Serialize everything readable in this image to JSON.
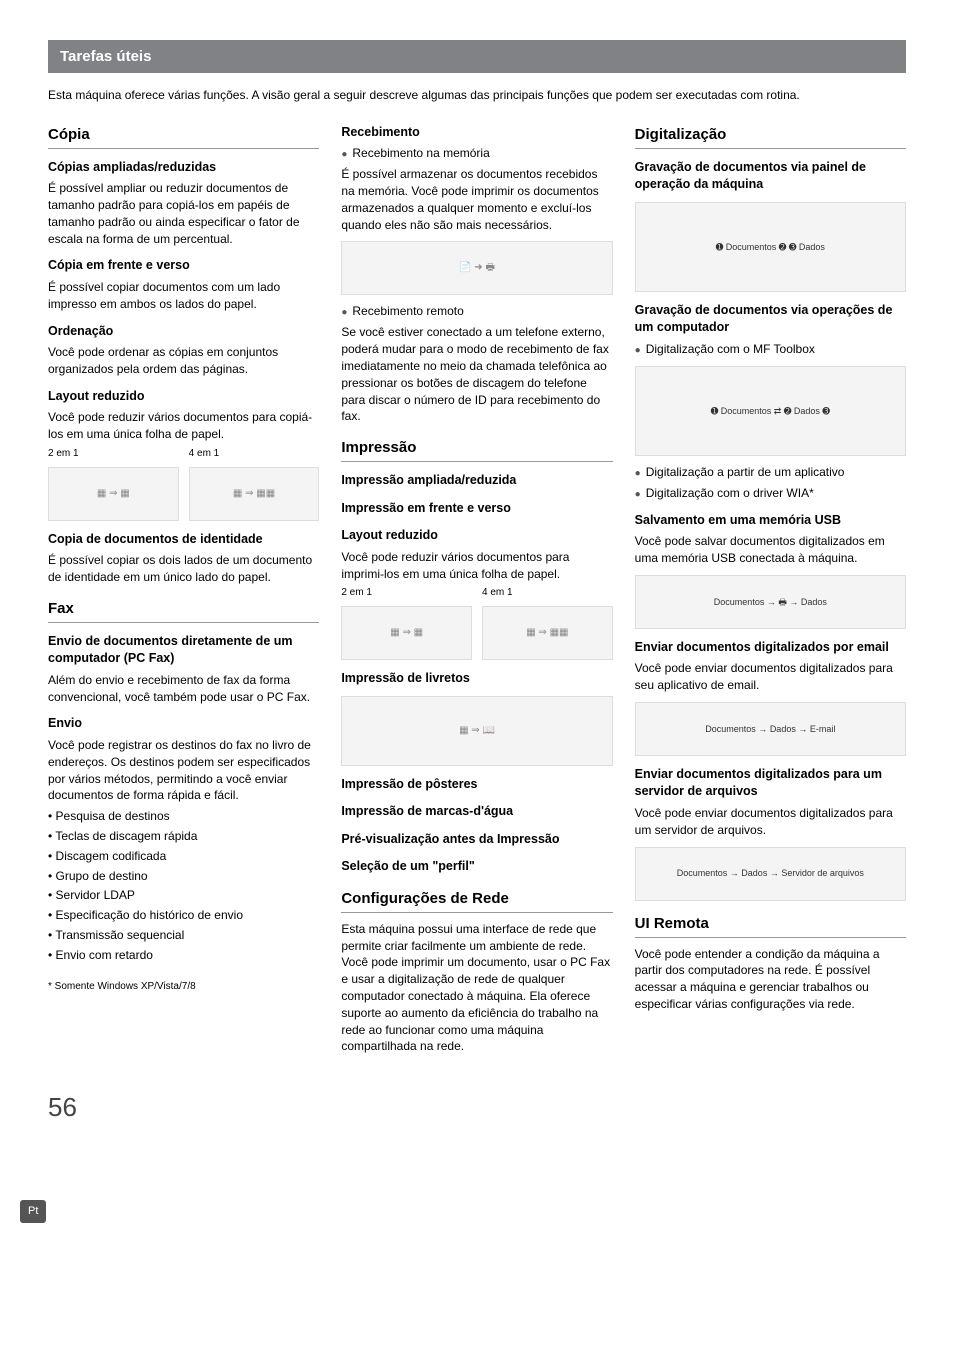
{
  "banner": "Tarefas úteis",
  "intro": "Esta máquina oferece várias funções. A visão geral a seguir descreve algumas das principais funções que podem ser executadas com rotina.",
  "col1": {
    "copia": {
      "title": "Cópia",
      "s1_h": "Cópias ampliadas/reduzidas",
      "s1_p": "É possível ampliar ou reduzir documentos de tamanho padrão para copiá-los em papéis de tamanho padrão ou ainda especificar o fator de escala na forma de um percentual.",
      "s2_h": "Cópia em frente e verso",
      "s2_p": "É possível copiar documentos com um lado impresso em ambos os lados do papel.",
      "s3_h": "Ordenação",
      "s3_p": "Você pode ordenar as cópias em conjuntos organizados pela ordem das páginas.",
      "s4_h": "Layout reduzido",
      "s4_p": "Você pode reduzir vários documentos para copiá-los em uma única folha de papel.",
      "cap1": "2 em 1",
      "cap2": "4 em 1",
      "s5_h": "Copia de documentos de identidade",
      "s5_p": "É possível copiar os dois lados de um documento de identidade em um único lado do papel."
    },
    "fax": {
      "title": "Fax",
      "s1_h": "Envio de documentos diretamente de um computador (PC Fax)",
      "s1_p": "Além do envio e recebimento de fax da forma convencional, você também pode usar o PC Fax.",
      "s2_h": "Envio",
      "s2_p": "Você pode registrar os destinos do fax no livro de endereços. Os destinos podem ser especificados por vários métodos, permitindo a você enviar documentos de forma rápida e fácil.",
      "items": [
        "Pesquisa de destinos",
        "Teclas de discagem rápida",
        "Discagem codificada",
        "Grupo de destino",
        "Servidor LDAP",
        "Especificação do histórico de envio",
        "Transmissão sequencial",
        "Envio com retardo"
      ]
    },
    "footnote": "* Somente Windows XP/Vista/7/8"
  },
  "col2": {
    "receb": {
      "title": "Recebimento",
      "b1": "Recebimento na memória",
      "b1_p": "É possível armazenar os documentos recebidos na memória. Você pode imprimir os documentos armazenados a qualquer momento e excluí-los quando eles não são mais necessários.",
      "b2": "Recebimento remoto",
      "b2_p": "Se você estiver conectado a um telefone externo, poderá mudar para o modo de recebimento de fax imediatamente no meio da chamada telefônica ao pressionar os botões de discagem do telefone para discar o número de ID para recebimento do fax."
    },
    "impr": {
      "title": "Impressão",
      "s1": "Impressão ampliada/reduzida",
      "s2": "Impressão em frente e verso",
      "s3_h": "Layout reduzido",
      "s3_p": "Você pode reduzir vários documentos para imprimi-los em uma única folha de papel.",
      "cap1": "2 em 1",
      "cap2": "4 em 1",
      "s4": "Impressão de livretos",
      "s5": "Impressão de pôsteres",
      "s6": "Impressão de marcas-d'água",
      "s7": "Pré-visualização antes da Impressão",
      "s8": "Seleção de um \"perfil\""
    },
    "rede": {
      "title": "Configurações de Rede",
      "p": "Esta máquina possui uma interface de rede que permite criar facilmente um ambiente de rede. Você pode imprimir um documento, usar o PC Fax e usar a digitalização de rede de qualquer computador conectado à máquina. Ela oferece suporte ao aumento da eficiência do trabalho na rede ao funcionar como uma máquina compartilhada na rede."
    }
  },
  "col3": {
    "digi": {
      "title": "Digitalização",
      "s1_h": "Gravação de documentos via painel de operação da máquina",
      "lbl_docs": "Documentos",
      "lbl_dados": "Dados",
      "s2_h": "Gravação de documentos via operações de um computador",
      "b1": "Digitalização com o MF Toolbox",
      "b2": "Digitalização a partir de um aplicativo",
      "b3": "Digitalização com o driver WIA*",
      "s3_h": "Salvamento em uma memória USB",
      "s3_p": "Você pode salvar documentos digitalizados em uma memória USB conectada à máquina.",
      "s4_h": "Enviar documentos digitalizados por email",
      "s4_p": "Você pode enviar documentos digitalizados para seu aplicativo de email.",
      "lbl_email": "E-mail",
      "s5_h": "Enviar documentos digitalizados para um servidor de arquivos",
      "s5_p": "Você pode enviar documentos digitalizados para um servidor de arquivos.",
      "lbl_serv": "Servidor de arquivos"
    },
    "uir": {
      "title": "UI Remota",
      "p": "Você pode entender a condição da máquina a partir dos computadores na rede. É possível acessar a máquina e gerenciar trabalhos ou especificar várias configurações via rede."
    }
  },
  "pageNum": "56",
  "langTab": "Pt"
}
